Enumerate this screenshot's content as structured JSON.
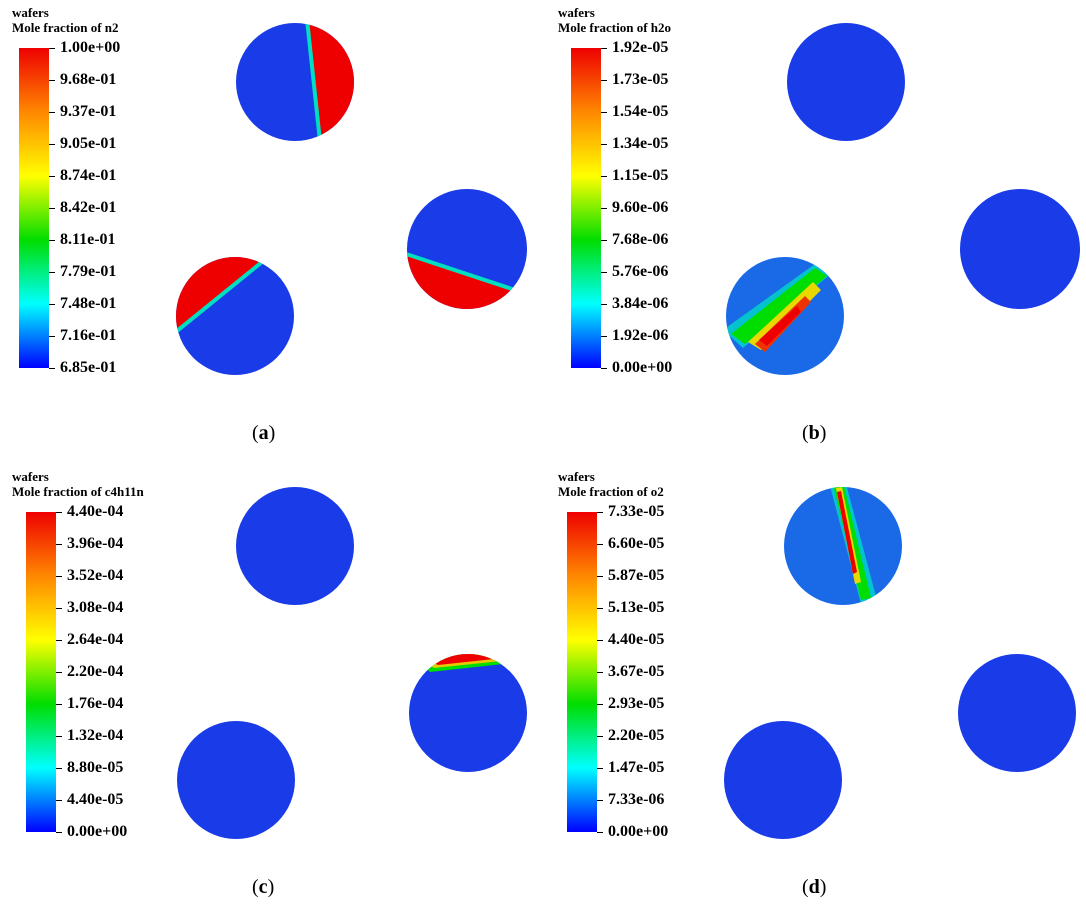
{
  "panels": [
    {
      "id": "a",
      "title_line1": "wafers",
      "title_line2": "Mole fraction of n2",
      "ticks": [
        "1.00e+00",
        "9.68e-01",
        "9.37e-01",
        "9.05e-01",
        "8.74e-01",
        "8.42e-01",
        "8.11e-01",
        "7.79e-01",
        "7.48e-01",
        "7.16e-01",
        "6.85e-01"
      ],
      "caption_open": "(",
      "caption_letter": "a",
      "caption_close": ")"
    },
    {
      "id": "b",
      "title_line1": "wafers",
      "title_line2": "Mole fraction of h2o",
      "ticks": [
        "1.92e-05",
        "1.73e-05",
        "1.54e-05",
        "1.34e-05",
        "1.15e-05",
        "9.60e-06",
        "7.68e-06",
        "5.76e-06",
        "3.84e-06",
        "1.92e-06",
        "0.00e+00"
      ],
      "caption_open": "(",
      "caption_letter": "b",
      "caption_close": ")"
    },
    {
      "id": "c",
      "title_line1": "wafers",
      "title_line2": "Mole fraction of c4h11n",
      "ticks": [
        "4.40e-04",
        "3.96e-04",
        "3.52e-04",
        "3.08e-04",
        "2.64e-04",
        "2.20e-04",
        "1.76e-04",
        "1.32e-04",
        "8.80e-05",
        "4.40e-05",
        "0.00e+00"
      ],
      "caption_open": "(",
      "caption_letter": "c",
      "caption_close": ")"
    },
    {
      "id": "d",
      "title_line1": "wafers",
      "title_line2": "Mole fraction of o2",
      "ticks": [
        "7.33e-05",
        "6.60e-05",
        "5.87e-05",
        "5.13e-05",
        "4.40e-05",
        "3.67e-05",
        "2.93e-05",
        "2.20e-05",
        "1.47e-05",
        "7.33e-06",
        "0.00e+00"
      ],
      "caption_open": "(",
      "caption_letter": "d",
      "caption_close": ")"
    }
  ],
  "colors": {
    "high": "#ee0000",
    "mid_orange": "#ff8800",
    "mid_yellow": "#ffff00",
    "mid_green": "#00dd00",
    "mid_cyan": "#00ffff",
    "low": "#0000ff",
    "wafer_base": "#1a3be8"
  }
}
